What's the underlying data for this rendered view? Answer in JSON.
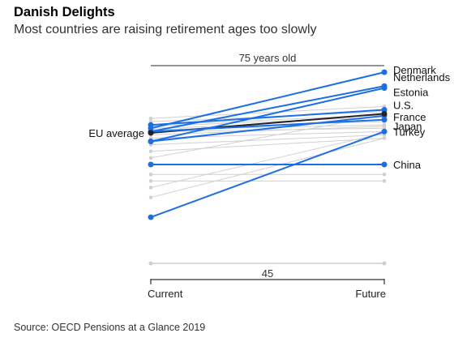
{
  "title": "Danish Delights",
  "subtitle": "Most countries are raising retirement ages too slowly",
  "source": "Source: OECD Pensions at a Glance 2019",
  "colors": {
    "highlight": "#1a6fe8",
    "average": "#222222",
    "other": "#d0d0d0",
    "axis": "#333333"
  },
  "chart_data": {
    "type": "slope",
    "x": [
      "Current",
      "Future"
    ],
    "ylim": [
      45,
      75
    ],
    "reference_lines": [
      {
        "value": 75,
        "label": "75 years old"
      },
      {
        "value": 45,
        "label": "45"
      }
    ],
    "series": [
      {
        "name": "Denmark",
        "values": [
          65.5,
          74
        ],
        "highlight": true
      },
      {
        "name": "Netherlands",
        "values": [
          65,
          71.9
        ],
        "highlight": true
      },
      {
        "name": "Estonia",
        "values": [
          63.5,
          71.6
        ],
        "highlight": true
      },
      {
        "name": "U.S.",
        "values": [
          66,
          68.3
        ],
        "highlight": true
      },
      {
        "name": "France",
        "values": [
          63.5,
          67.4
        ],
        "highlight": true
      },
      {
        "name": "Japan",
        "values": [
          65,
          66.8
        ],
        "highlight": true
      },
      {
        "name": "Turkey",
        "values": [
          52,
          65
        ],
        "highlight": true
      },
      {
        "name": "China",
        "values": [
          60,
          60
        ],
        "highlight": true
      },
      {
        "name": "EU average",
        "values": [
          64.8,
          67.7
        ],
        "average": true
      },
      {
        "name": "",
        "values": [
          67,
          68.8
        ]
      },
      {
        "name": "",
        "values": [
          66.5,
          68
        ]
      },
      {
        "name": "",
        "values": [
          66,
          67.5
        ]
      },
      {
        "name": "",
        "values": [
          65.8,
          67.2
        ]
      },
      {
        "name": "",
        "values": [
          65.5,
          66.5
        ]
      },
      {
        "name": "",
        "values": [
          65.3,
          66
        ]
      },
      {
        "name": "",
        "values": [
          65,
          65.5
        ]
      },
      {
        "name": "",
        "values": [
          64.5,
          65.8
        ]
      },
      {
        "name": "",
        "values": [
          64,
          65
        ]
      },
      {
        "name": "",
        "values": [
          63,
          64.5
        ]
      },
      {
        "name": "",
        "values": [
          62,
          64
        ]
      },
      {
        "name": "",
        "values": [
          61,
          67.5
        ]
      },
      {
        "name": "",
        "values": [
          58.5,
          58.5
        ]
      },
      {
        "name": "",
        "values": [
          57.5,
          57.5
        ]
      },
      {
        "name": "",
        "values": [
          56.5,
          64.8
        ]
      },
      {
        "name": "",
        "values": [
          55,
          64
        ]
      }
    ]
  }
}
